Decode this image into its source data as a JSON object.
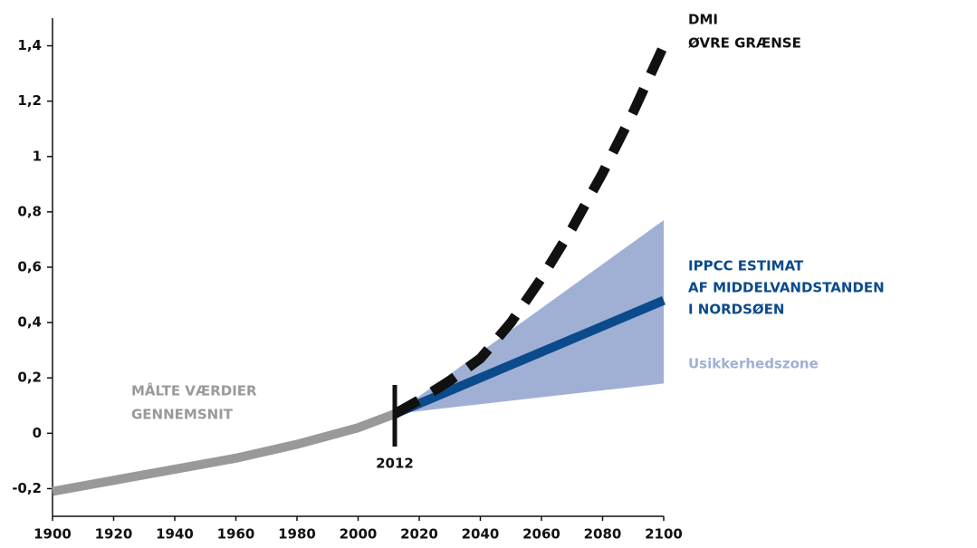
{
  "chart_data": {
    "type": "line",
    "xlim": [
      1900,
      2100
    ],
    "xticks": [
      1900,
      1920,
      1940,
      1960,
      1980,
      2000,
      2020,
      2040,
      2060,
      2080,
      2100
    ],
    "ylim": [
      -0.3,
      1.5
    ],
    "yticks": [
      {
        "value": -0.2,
        "label": "-0,2"
      },
      0,
      {
        "value": 0.2,
        "label": "0,2"
      },
      {
        "value": 0.4,
        "label": "0,4"
      },
      {
        "value": 0.6,
        "label": "0,6"
      },
      {
        "value": 0.8,
        "label": "0,8"
      },
      1,
      {
        "value": 1.2,
        "label": "1,2"
      },
      {
        "value": 1.4,
        "label": "1,4"
      }
    ],
    "band": {
      "name": "Usikkerhedszone",
      "color": "#a0b0d5",
      "x": [
        2012,
        2100
      ],
      "upper": [
        0.07,
        0.77
      ],
      "lower": [
        0.07,
        0.18
      ]
    },
    "series": [
      {
        "name": [
          "MÅLTE VÆRDIER",
          "GENNEMSNIT"
        ],
        "color": "#999999",
        "x": [
          1900,
          1920,
          1940,
          1960,
          1980,
          2000,
          2012
        ],
        "values": [
          -0.21,
          -0.17,
          -0.13,
          -0.09,
          -0.04,
          0.02,
          0.07
        ]
      },
      {
        "name": [
          "IPPCC ESTIMAT",
          "AF MIDDELVANDSTANDEN",
          "I NORDSØEN"
        ],
        "color": "#0b4a8b",
        "x": [
          2012,
          2100
        ],
        "values": [
          0.07,
          0.48
        ]
      },
      {
        "name": [
          "DMI",
          "ØVRE GRÆNSE"
        ],
        "color": "#111111",
        "dashed": true,
        "x": [
          2012,
          2020,
          2030,
          2040,
          2050,
          2060,
          2070,
          2080,
          2090,
          2100
        ],
        "values": [
          0.07,
          0.12,
          0.19,
          0.27,
          0.4,
          0.56,
          0.74,
          0.94,
          1.16,
          1.4
        ]
      }
    ],
    "marker_x": 2012
  }
}
